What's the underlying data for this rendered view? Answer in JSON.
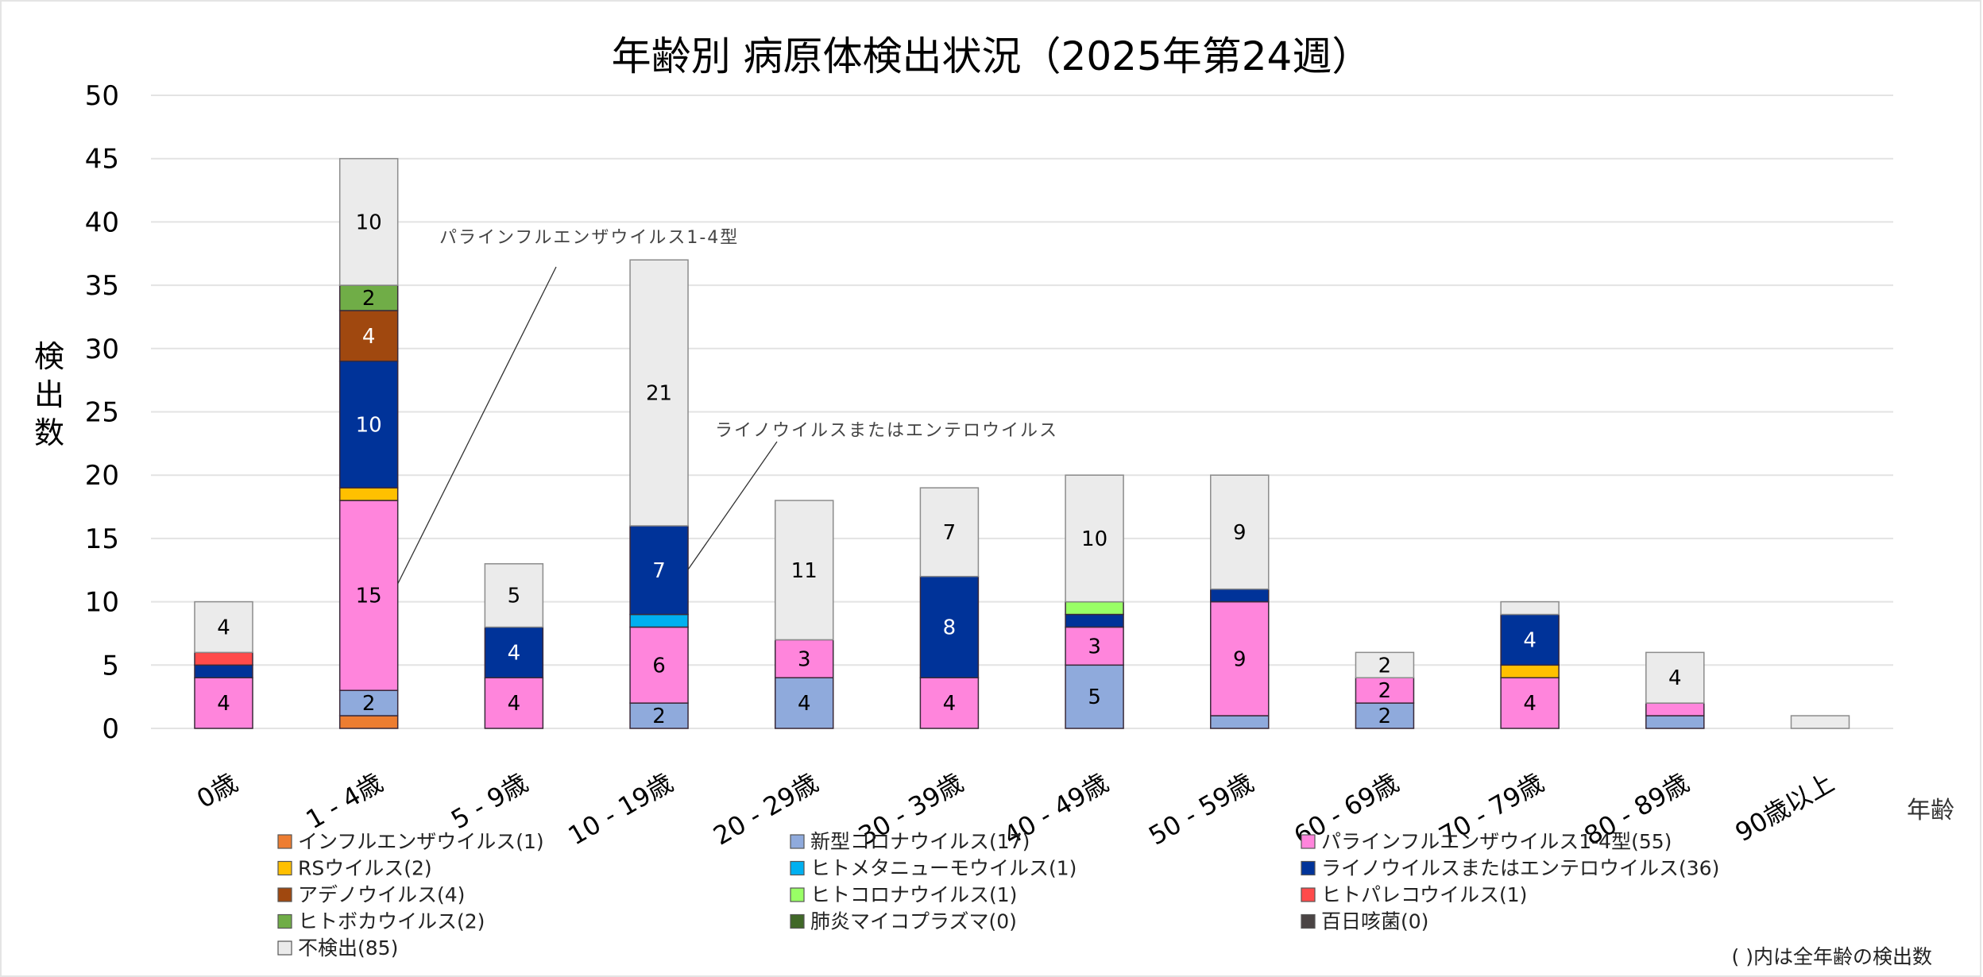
{
  "chart_data": {
    "type": "bar",
    "stacked": true,
    "title": "年齢別 病原体検出状況（2025年第24週）",
    "xlabel": "年齢",
    "ylabel": "検出数",
    "ylim": [
      0,
      50
    ],
    "yticks": [
      0,
      5,
      10,
      15,
      20,
      25,
      30,
      35,
      40,
      45,
      50
    ],
    "grid": true,
    "legend_position": "bottom",
    "categories": [
      "0歳",
      "1 - 4歳",
      "5 - 9歳",
      "10 - 19歳",
      "20 - 29歳",
      "30 - 39歳",
      "40 - 49歳",
      "50 - 59歳",
      "60 - 69歳",
      "70 - 79歳",
      "80 - 89歳",
      "90歳以上"
    ],
    "series": [
      {
        "name": "インフルエンザウイルス",
        "total": 1,
        "color": "#ED7D31",
        "label_color": "#000000",
        "values": [
          0,
          1,
          0,
          0,
          0,
          0,
          0,
          0,
          0,
          0,
          0,
          0
        ]
      },
      {
        "name": "新型コロナウイルス",
        "total": 17,
        "color": "#8FAADC",
        "label_color": "#000000",
        "values": [
          0,
          2,
          0,
          2,
          4,
          0,
          5,
          1,
          2,
          0,
          1,
          0
        ]
      },
      {
        "name": "パラインフルエンザウイルス1-4型",
        "total": 55,
        "color": "#FF85DC",
        "label_color": "#000000",
        "values": [
          4,
          15,
          4,
          6,
          3,
          4,
          3,
          9,
          2,
          4,
          1,
          0
        ]
      },
      {
        "name": "RSウイルス",
        "total": 2,
        "color": "#FFC000",
        "label_color": "#000000",
        "values": [
          0,
          1,
          0,
          0,
          0,
          0,
          0,
          0,
          0,
          1,
          0,
          0
        ]
      },
      {
        "name": "ヒトメタニューモウイルス",
        "total": 1,
        "color": "#00B0F0",
        "label_color": "#000000",
        "values": [
          0,
          0,
          0,
          1,
          0,
          0,
          0,
          0,
          0,
          0,
          0,
          0
        ]
      },
      {
        "name": "ライノウイルスまたはエンテロウイルス",
        "total": 36,
        "color": "#003399",
        "label_color": "#FFFFFF",
        "values": [
          1,
          10,
          4,
          7,
          0,
          8,
          1,
          1,
          0,
          4,
          0,
          0
        ]
      },
      {
        "name": "アデノウイルス",
        "total": 4,
        "color": "#A0480F",
        "label_color": "#FFFFFF",
        "values": [
          0,
          4,
          0,
          0,
          0,
          0,
          0,
          0,
          0,
          0,
          0,
          0
        ]
      },
      {
        "name": "ヒトコロナウイルス",
        "total": 1,
        "color": "#99FF66",
        "label_color": "#000000",
        "values": [
          0,
          0,
          0,
          0,
          0,
          0,
          1,
          0,
          0,
          0,
          0,
          0
        ]
      },
      {
        "name": "ヒトパレコウイルス",
        "total": 1,
        "color": "#FF4B4B",
        "label_color": "#000000",
        "values": [
          1,
          0,
          0,
          0,
          0,
          0,
          0,
          0,
          0,
          0,
          0,
          0
        ]
      },
      {
        "name": "ヒトボカウイルス",
        "total": 2,
        "color": "#70AD47",
        "label_color": "#000000",
        "values": [
          0,
          2,
          0,
          0,
          0,
          0,
          0,
          0,
          0,
          0,
          0,
          0
        ]
      },
      {
        "name": "肺炎マイコプラズマ",
        "total": 0,
        "color": "#406828",
        "label_color": "#FFFFFF",
        "values": [
          0,
          0,
          0,
          0,
          0,
          0,
          0,
          0,
          0,
          0,
          0,
          0
        ]
      },
      {
        "name": "百日咳菌",
        "total": 0,
        "color": "#4A4444",
        "label_color": "#FFFFFF",
        "values": [
          0,
          0,
          0,
          0,
          0,
          0,
          0,
          0,
          0,
          0,
          0,
          0
        ]
      },
      {
        "name": "不検出",
        "total": 85,
        "color": "#EBEBEB",
        "label_color": "#000000",
        "values": [
          4,
          10,
          5,
          21,
          11,
          7,
          10,
          9,
          2,
          1,
          4,
          1
        ]
      }
    ],
    "legend_order": [
      "インフルエンザウイルス",
      "新型コロナウイルス",
      "パラインフルエンザウイルス1-4型",
      "RSウイルス",
      "ヒトメタニューモウイルス",
      "ライノウイルスまたはエンテロウイルス",
      "アデノウイルス",
      "ヒトコロナウイルス",
      "ヒトパレコウイルス",
      "ヒトボカウイルス",
      "肺炎マイコプラズマ",
      "百日咳菌",
      "不検出"
    ],
    "data_label_min": 2,
    "annotations": [
      {
        "text": "パラインフルエンザウイルス1-4型",
        "series": "パラインフルエンザウイルス1-4型",
        "category": "1 - 4歳"
      },
      {
        "text": "ライノウイルスまたはエンテロウイルス",
        "series": "ライノウイルスまたはエンテロウイルス",
        "category": "10 - 19歳"
      }
    ],
    "note": "( )内は全年齢の検出数"
  }
}
